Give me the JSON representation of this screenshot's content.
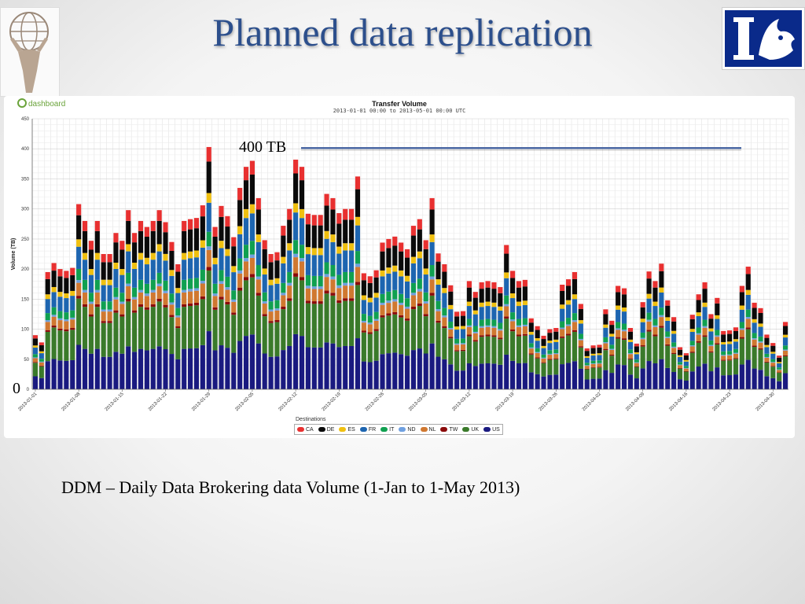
{
  "slide": {
    "title": "Planned data replication",
    "caption": "DDM – Daily Data Brokering data Volume (1-Jan to 1-May 2013)",
    "annotation_top": "400 TB",
    "annotation_zero": "0",
    "brand_text": "dashboard"
  },
  "chart_data": {
    "type": "bar",
    "stacked": true,
    "title": "Transfer Volume",
    "subtitle": "2013-01-01 00:00 to 2013-05-01 00:00 UTC",
    "ylabel": "Volume (TB)",
    "ylim": [
      0,
      450
    ],
    "yticks": [
      0,
      50,
      100,
      150,
      200,
      250,
      300,
      350,
      400,
      450
    ],
    "grid": true,
    "legend_title": "Destinations",
    "legend_position": "bottom",
    "reference_line": 400,
    "x_tick_labels": [
      "2013-01-01",
      "2013-01-08",
      "2013-01-15",
      "2013-01-22",
      "2013-01-29",
      "2013-02-05",
      "2013-02-12",
      "2013-02-19",
      "2013-02-26",
      "2013-03-05",
      "2013-03-12",
      "2013-03-19",
      "2013-03-26",
      "2013-04-02",
      "2013-04-09",
      "2013-04-16",
      "2013-04-23",
      "2013-04-30"
    ],
    "x_tick_interval_days": 7,
    "series": [
      {
        "name": "US",
        "color": "#1a1a80",
        "share": 0.24
      },
      {
        "name": "UK",
        "color": "#3a7a2a",
        "share": 0.25
      },
      {
        "name": "TW",
        "color": "#8b0a0a",
        "share": 0.015
      },
      {
        "name": "NL",
        "color": "#d07830",
        "share": 0.07
      },
      {
        "name": "ND",
        "color": "#6fa0e0",
        "share": 0.015
      },
      {
        "name": "IT",
        "color": "#10a050",
        "share": 0.06
      },
      {
        "name": "FR",
        "color": "#1d65b0",
        "share": 0.12
      },
      {
        "name": "ES",
        "color": "#f0c010",
        "share": 0.04
      },
      {
        "name": "DE",
        "color": "#0a0a0a",
        "share": 0.13
      },
      {
        "name": "CA",
        "color": "#e83030",
        "share": 0.06
      }
    ],
    "legend_order": [
      "CA",
      "DE",
      "ES",
      "FR",
      "IT",
      "ND",
      "NL",
      "TW",
      "UK",
      "US"
    ],
    "daily_totals": [
      90,
      78,
      195,
      210,
      200,
      197,
      202,
      308,
      280,
      247,
      280,
      225,
      225,
      260,
      247,
      298,
      260,
      280,
      270,
      280,
      298,
      278,
      245,
      208,
      280,
      283,
      285,
      306,
      403,
      270,
      305,
      288,
      253,
      335,
      370,
      380,
      318,
      248,
      225,
      228,
      272,
      300,
      382,
      370,
      292,
      290,
      290,
      325,
      318,
      293,
      300,
      300,
      354,
      193,
      188,
      198,
      244,
      250,
      254,
      244,
      233,
      272,
      283,
      248,
      318,
      226,
      208,
      173,
      129,
      130,
      180,
      162,
      178,
      180,
      178,
      170,
      240,
      197,
      180,
      182,
      118,
      105,
      89,
      100,
      102,
      174,
      183,
      195,
      142,
      68,
      73,
      74,
      133,
      114,
      172,
      168,
      102,
      76,
      145,
      196,
      180,
      209,
      148,
      120,
      70,
      60,
      124,
      158,
      178,
      125,
      152,
      97,
      98,
      103,
      172,
      204,
      144,
      135,
      91,
      77,
      56,
      112
    ]
  }
}
